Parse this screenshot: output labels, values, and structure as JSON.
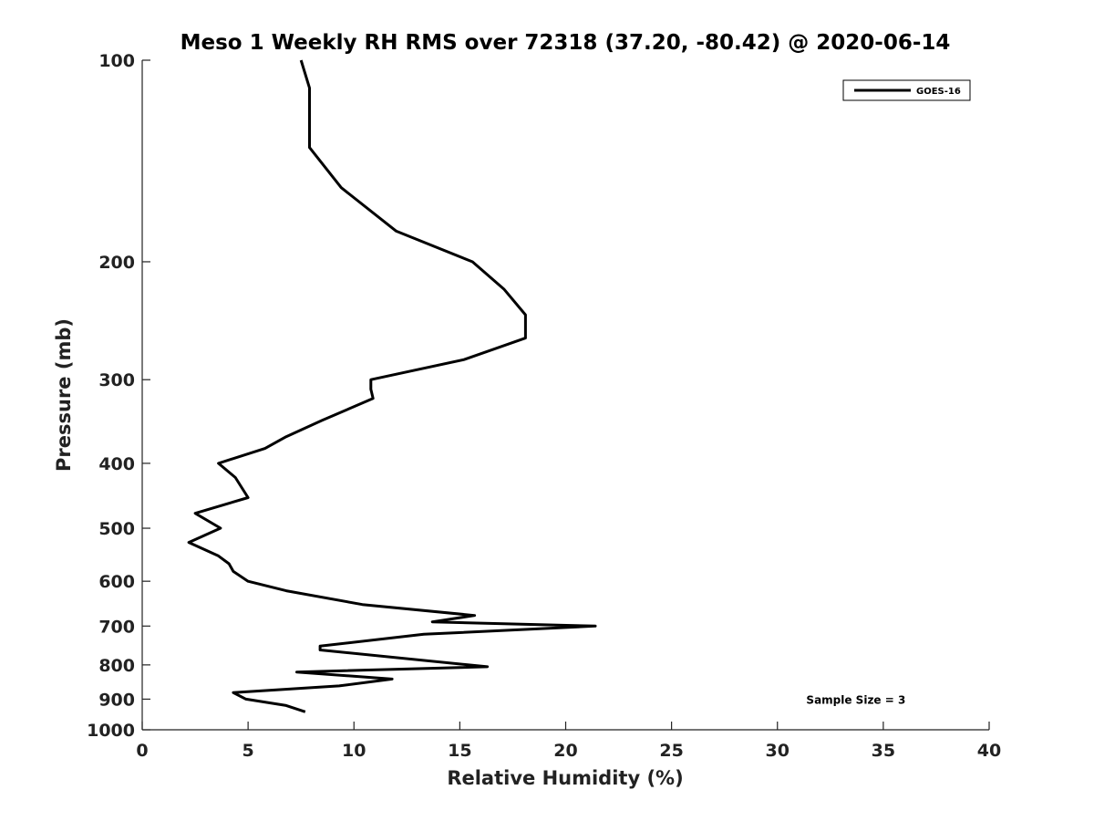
{
  "chart_data": {
    "type": "line",
    "title": "Meso 1 Weekly RH RMS over 72318 (37.20, -80.42) @ 2020-06-14",
    "xlabel": "Relative Humidity (%)",
    "ylabel": "Pressure (mb)",
    "xlim": [
      0,
      40
    ],
    "ylim": [
      100,
      1000
    ],
    "yscale": "log",
    "y_reversed": true,
    "xticks": [
      0,
      5,
      10,
      15,
      20,
      25,
      30,
      35,
      40
    ],
    "yticks": [
      100,
      200,
      300,
      400,
      500,
      600,
      700,
      800,
      900,
      1000
    ],
    "grid": false,
    "legend_position": "top-right",
    "colors": {
      "line": "#000000",
      "axis": "#222222"
    },
    "series": [
      {
        "name": "GOES-16",
        "x": [
          7.5,
          7.9,
          7.9,
          7.9,
          9.4,
          12.0,
          15.6,
          17.1,
          18.1,
          18.1,
          15.2,
          10.8,
          10.8,
          10.9,
          8.5,
          6.8,
          5.8,
          3.6,
          4.4,
          5.0,
          2.5,
          3.7,
          2.2,
          3.6,
          4.1,
          4.3,
          5.0,
          6.8,
          10.4,
          15.7,
          13.7,
          21.4,
          13.3,
          8.4,
          8.4,
          16.3,
          7.3,
          11.8,
          9.3,
          4.3,
          4.9,
          6.8,
          7.7
        ],
        "y": [
          100,
          110,
          125,
          135,
          155,
          180,
          200,
          220,
          240,
          260,
          280,
          300,
          310,
          320,
          345,
          365,
          380,
          400,
          420,
          450,
          475,
          500,
          525,
          550,
          565,
          580,
          600,
          620,
          650,
          675,
          690,
          700,
          720,
          750,
          760,
          805,
          820,
          840,
          860,
          880,
          900,
          920,
          940
        ]
      }
    ],
    "annotations": [
      {
        "text": "Sample Size = 3",
        "x": 35,
        "y": 900
      }
    ]
  }
}
